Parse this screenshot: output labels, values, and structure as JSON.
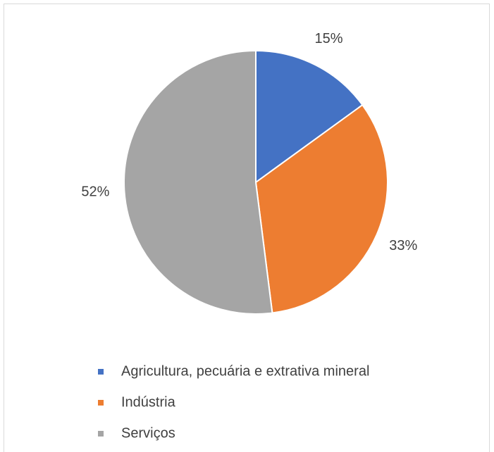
{
  "chart_data": {
    "type": "pie",
    "categories": [
      "Agricultura, pecuária e extrativa mineral",
      "Indústria",
      "Serviços"
    ],
    "values": [
      15,
      33,
      52
    ],
    "value_labels": [
      "15%",
      "33%",
      "52%"
    ],
    "colors": [
      "#4472c4",
      "#ed7d31",
      "#a5a5a5"
    ]
  }
}
